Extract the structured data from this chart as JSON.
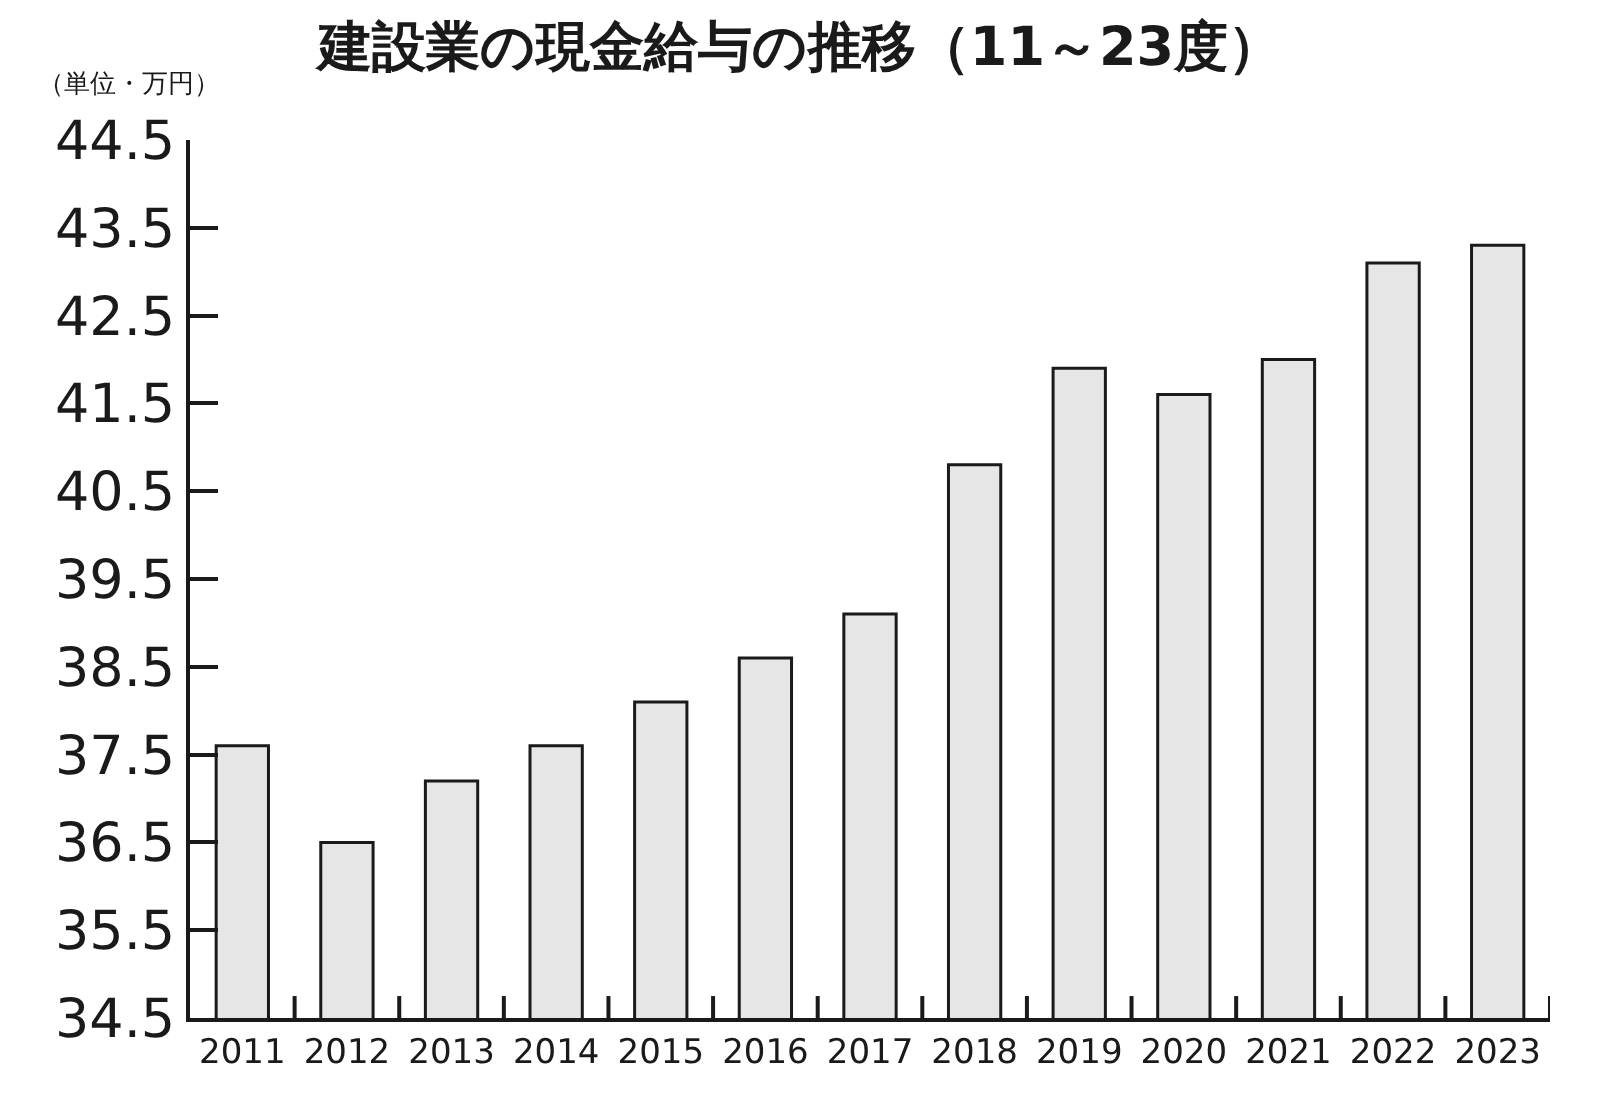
{
  "chart_data": {
    "type": "bar",
    "title": "建設業の現金給与の推移（11～23度）",
    "ylabel": "（単位・万円）",
    "categories": [
      "2011",
      "2012",
      "2013",
      "2014",
      "2015",
      "2016",
      "2017",
      "2018",
      "2019",
      "2020",
      "2021",
      "2022",
      "2023"
    ],
    "values": [
      37.6,
      36.5,
      37.2,
      37.6,
      38.1,
      38.6,
      39.1,
      40.8,
      41.9,
      41.6,
      42.0,
      43.1,
      43.3
    ],
    "color": "#e6e6e6",
    "ylim": [
      34.5,
      44.5
    ],
    "yticks": [
      34.5,
      35.5,
      36.5,
      37.5,
      38.5,
      39.5,
      40.5,
      41.5,
      42.5,
      43.5,
      44.5
    ]
  }
}
